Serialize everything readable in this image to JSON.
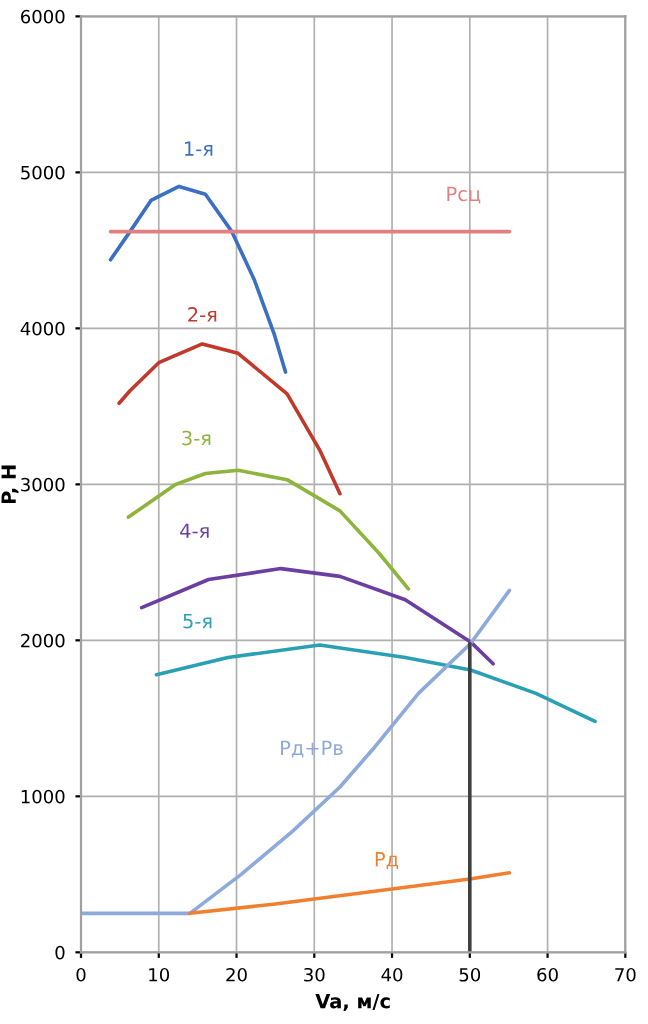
{
  "chart_data": {
    "type": "line",
    "xlabel": "Va, м/с",
    "ylabel": "P, H",
    "xlim": [
      0,
      70
    ],
    "xticks": [
      0,
      10,
      20,
      30,
      40,
      50,
      60,
      70
    ],
    "ylim": [
      0,
      6000
    ],
    "yticks": [
      0,
      1000,
      2000,
      3000,
      4000,
      5000,
      6000
    ],
    "grid": true,
    "legend": false,
    "series": [
      {
        "name": "1-я",
        "color": "#3b6fc2",
        "x": [
          3.8,
          6.3,
          9,
          12.6,
          16,
          19.4,
          22.3,
          24.8,
          26.3
        ],
        "values": [
          4440,
          4620,
          4820,
          4910,
          4860,
          4620,
          4310,
          3970,
          3720
        ]
      },
      {
        "name": "2-я",
        "color": "#c0392b",
        "x": [
          4.9,
          6.3,
          10,
          15.6,
          20.2,
          26.5,
          30.7,
          33.3
        ],
        "values": [
          3520,
          3600,
          3780,
          3900,
          3840,
          3580,
          3220,
          2940
        ]
      },
      {
        "name": "3-я",
        "color": "#8db43c",
        "x": [
          6.1,
          12.2,
          16,
          20.2,
          26.5,
          33.3,
          38.3,
          42.1
        ],
        "values": [
          2790,
          3000,
          3070,
          3090,
          3030,
          2830,
          2560,
          2330
        ]
      },
      {
        "name": "4-я",
        "color": "#6a3fa0",
        "x": [
          7.8,
          16.4,
          25.7,
          33.3,
          41.7,
          50.1,
          53.0
        ],
        "values": [
          2210,
          2390,
          2460,
          2410,
          2260,
          1990,
          1850
        ]
      },
      {
        "name": "5-я",
        "color": "#2aa0b5",
        "x": [
          9.7,
          18.9,
          30.7,
          41.7,
          50.1,
          58.5,
          66.1
        ],
        "values": [
          1780,
          1890,
          1970,
          1890,
          1810,
          1660,
          1480
        ]
      },
      {
        "name": "Рсц",
        "color": "#e08080",
        "x": [
          3.8,
          55.1
        ],
        "values": [
          4620,
          4620
        ]
      },
      {
        "name": "Рд+Рв",
        "color": "#8ea9db",
        "x": [
          0,
          14,
          20.6,
          27.3,
          33.3,
          37.5,
          43.4,
          50.1,
          55.1
        ],
        "values": [
          250,
          250,
          500,
          780,
          1060,
          1300,
          1660,
          1980,
          2320
        ]
      },
      {
        "name": "Рд",
        "color": "#f08030",
        "x": [
          14,
          25,
          37.5,
          50,
          55.1
        ],
        "values": [
          250,
          310,
          390,
          470,
          510
        ]
      },
      {
        "color": "#404040",
        "x": [
          50,
          50
        ],
        "values": [
          0,
          1980
        ]
      }
    ]
  }
}
